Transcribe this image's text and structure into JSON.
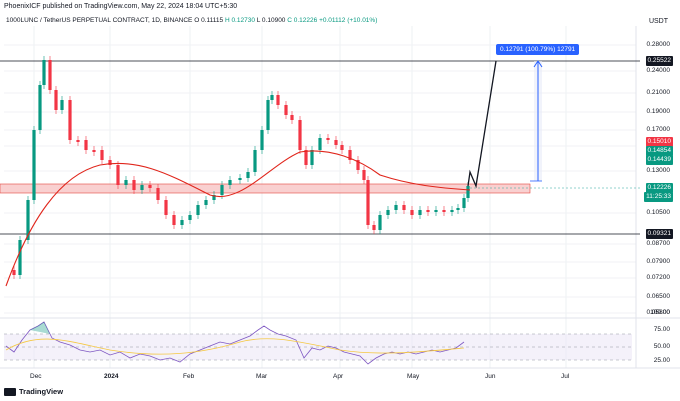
{
  "header": {
    "publisher_text": "PhoenixICF published on TradingView.com, May 22, 2024 18:04 UTC+5:30"
  },
  "symbol": {
    "title": "1000LUNC / TetherUS PERPETUAL CONTRACT, 1D, BINANCE",
    "open": "O 0.11115",
    "high": "H 0.12730",
    "low": "L 0.10900",
    "close": "C 0.12226",
    "change": "+0.01112 (+10.01%)"
  },
  "price_axis": {
    "unit": "USDT",
    "ticks": [
      "0.28000",
      "0.24000",
      "0.21000",
      "0.19000",
      "0.17000",
      "0.15000",
      "0.13000",
      "0.10500",
      "0.08700",
      "0.07900",
      "0.07200",
      "0.06500",
      "0.05800"
    ],
    "tags": {
      "top_line": "0.25522",
      "red": "0.15010",
      "green1": "0.14854",
      "green2": "0.14439",
      "current": "0.12226",
      "countdown": "11:25:33",
      "bottom_line": "0.09321"
    }
  },
  "rsi_axis": {
    "ticks": [
      "100.00",
      "75.00",
      "50.00",
      "25.00"
    ]
  },
  "measure_label": "0.12791 (100.79%) 12791",
  "time_axis": {
    "labels": [
      "Dec",
      "2024",
      "Feb",
      "Mar",
      "Apr",
      "May",
      "Jun",
      "Jul"
    ]
  },
  "footer": {
    "brand": "TradingView"
  },
  "colors": {
    "up": "#089981",
    "down": "#f23645",
    "ma": "#e0251b",
    "rsi": "#7e57c2",
    "rsi_ma": "#f5c842",
    "measure": "#2962ff",
    "zone": "#f8c8c8"
  },
  "chart_data": {
    "type": "candlestick",
    "price_axis_type": "log",
    "ylim": [
      0.055,
      0.3
    ],
    "support_level": 0.09321,
    "resistance_level": 0.25522,
    "zone": [
      0.118,
      0.124
    ],
    "projection_target": 0.25522,
    "rsi_levels": [
      70,
      50,
      30
    ]
  }
}
